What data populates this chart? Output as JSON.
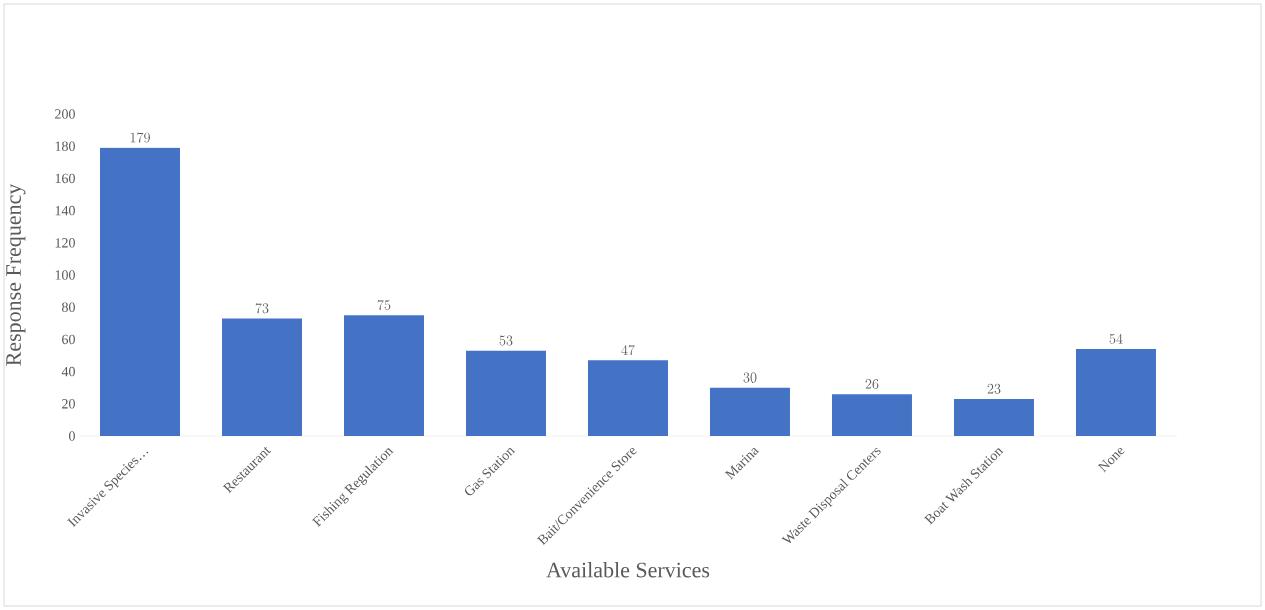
{
  "chart_data": {
    "type": "bar",
    "xlabel": "Available Services",
    "ylabel": "Response Frequency",
    "categories": [
      "Invasive Species…",
      "Restaurant",
      "Fishing Regulation",
      "Gas Station",
      "Bait/Convenience Store",
      "Marina",
      "Waste Disposal Centers",
      "Boat Wash Station",
      "None"
    ],
    "values": [
      179,
      73,
      75,
      53,
      47,
      30,
      26,
      23,
      54
    ],
    "color": "#4472c4",
    "ylim": [
      0,
      200
    ],
    "yticks": [
      0,
      20,
      40,
      60,
      80,
      100,
      120,
      140,
      160,
      180,
      200
    ],
    "data_labels": true
  }
}
